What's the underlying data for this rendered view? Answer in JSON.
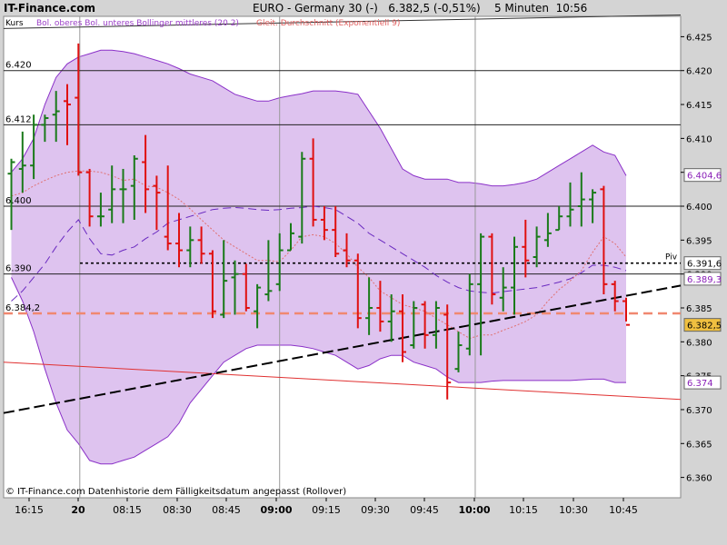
{
  "header": {
    "site": "IT-Finance.com",
    "title": "EURO - Germany 30 (-)   6.382,5 (-0,51%)    5 Minuten  10:56"
  },
  "legend": {
    "kurs": "Kurs",
    "bollinger": "Bol. oberes Bol. unteres Bollinger mittleres (20 2)",
    "ema": "Gleit. Durchschnitt (Exponentiell 9)"
  },
  "footer": "© IT-Finance.com  Datenhistorie dem Fälligkeitsdatum angepasst (Rollover)",
  "colors": {
    "up": "#1a7a1a",
    "down": "#e01010",
    "band_fill": "#d8b8ec",
    "band_line": "#8a30c8",
    "middle_line": "#6a2ac0",
    "ema_line": "#e07070",
    "level_line": "#f08870"
  },
  "chart_data": {
    "type": "ohlc",
    "ylim": [
      6.357,
      6.428
    ],
    "y_ticks": [
      "6.425",
      "6.420",
      "6.415",
      "6.410",
      "6.405",
      "6.400",
      "6.395",
      "6.390",
      "6.385",
      "6.380",
      "6.375",
      "6.370",
      "6.365",
      "6.360"
    ],
    "x_ticks": [
      {
        "label": "16:15",
        "bold": false
      },
      {
        "label": "20",
        "bold": true
      },
      {
        "label": "08:15",
        "bold": false
      },
      {
        "label": "08:30",
        "bold": false
      },
      {
        "label": "08:45",
        "bold": false
      },
      {
        "label": "09:00",
        "bold": true
      },
      {
        "label": "09:15",
        "bold": false
      },
      {
        "label": "09:30",
        "bold": false
      },
      {
        "label": "09:45",
        "bold": false
      },
      {
        "label": "10:00",
        "bold": true
      },
      {
        "label": "10:15",
        "bold": false
      },
      {
        "label": "10:30",
        "bold": false
      },
      {
        "label": "10:45",
        "bold": false
      }
    ],
    "levels": [
      {
        "label": "6.420",
        "value": 6.42
      },
      {
        "label": "6.412",
        "value": 6.412
      },
      {
        "label": "6.400",
        "value": 6.4
      },
      {
        "label": "6.390",
        "value": 6.39
      },
      {
        "label": "6.384,2",
        "value": 6.3842
      }
    ],
    "pivot": {
      "label": "Piv",
      "value": 6.3916
    },
    "tags": [
      {
        "label": "6.404,6",
        "value": 6.4046
      },
      {
        "label": "6.391,6",
        "value": 6.3916
      },
      {
        "label": "6.389,3",
        "value": 6.3893
      },
      {
        "label": "6.382,5",
        "value": 6.3825
      },
      {
        "label": "6.374",
        "value": 6.374
      }
    ],
    "trend_dashed": [
      [
        0,
        6.3695
      ],
      [
        62,
        6.3883
      ]
    ],
    "trend_red": [
      [
        0,
        6.377
      ],
      [
        62,
        6.3715
      ]
    ],
    "bars": [
      [
        6.4048,
        6.407,
        6.3965,
        6.4065
      ],
      [
        6.4055,
        6.411,
        6.402,
        6.406
      ],
      [
        6.406,
        6.4135,
        6.404,
        6.412
      ],
      [
        6.412,
        6.4135,
        6.4095,
        6.413
      ],
      [
        6.4135,
        6.417,
        6.4095,
        6.414
      ],
      [
        6.4155,
        6.418,
        6.409,
        6.415
      ],
      [
        6.416,
        6.424,
        6.4045,
        6.405
      ],
      [
        6.405,
        6.4055,
        6.397,
        6.3985
      ],
      [
        6.3985,
        6.402,
        6.397,
        6.3985
      ],
      [
        6.3995,
        6.406,
        6.3975,
        6.4025
      ],
      [
        6.4025,
        6.4055,
        6.3975,
        6.4025
      ],
      [
        6.403,
        6.4075,
        6.398,
        6.407
      ],
      [
        6.4065,
        6.4105,
        6.399,
        6.4025
      ],
      [
        6.403,
        6.4045,
        6.3965,
        6.402
      ],
      [
        6.3955,
        6.406,
        6.3935,
        6.3945
      ],
      [
        6.3945,
        6.399,
        6.391,
        6.3935
      ],
      [
        6.3935,
        6.397,
        6.391,
        6.395
      ],
      [
        6.395,
        6.397,
        6.3915,
        6.393
      ],
      [
        6.393,
        6.3935,
        6.3835,
        6.3845
      ],
      [
        6.384,
        6.395,
        6.3835,
        6.389
      ],
      [
        6.3895,
        6.392,
        6.384,
        6.39
      ],
      [
        6.39,
        6.3915,
        6.3845,
        6.385
      ],
      [
        6.3845,
        6.3885,
        6.382,
        6.388
      ],
      [
        6.387,
        6.395,
        6.386,
        6.3875
      ],
      [
        6.3885,
        6.396,
        6.3875,
        6.3935
      ],
      [
        6.3935,
        6.3975,
        6.3935,
        6.396
      ],
      [
        6.3955,
        6.408,
        6.3945,
        6.407
      ],
      [
        6.407,
        6.41,
        6.397,
        6.398
      ],
      [
        6.398,
        6.4,
        6.395,
        6.3965
      ],
      [
        6.3965,
        6.4,
        6.3925,
        6.393
      ],
      [
        6.3935,
        6.396,
        6.391,
        6.392
      ],
      [
        6.392,
        6.393,
        6.382,
        6.3835
      ],
      [
        6.3835,
        6.3895,
        6.381,
        6.385
      ],
      [
        6.385,
        6.389,
        6.3815,
        6.383
      ],
      [
        6.383,
        6.387,
        6.38,
        6.3845
      ],
      [
        6.3845,
        6.387,
        6.377,
        6.3785
      ],
      [
        6.3795,
        6.386,
        6.379,
        6.385
      ],
      [
        6.3855,
        6.386,
        6.379,
        6.381
      ],
      [
        6.381,
        6.386,
        6.379,
        6.385
      ],
      [
        6.384,
        6.3855,
        6.3715,
        6.374
      ],
      [
        6.376,
        6.3815,
        6.3755,
        6.3795
      ],
      [
        6.379,
        6.39,
        6.378,
        6.3885
      ],
      [
        6.3885,
        6.396,
        6.378,
        6.3955
      ],
      [
        6.3955,
        6.396,
        6.3855,
        6.387
      ],
      [
        6.3865,
        6.391,
        6.3845,
        6.388
      ],
      [
        6.388,
        6.3955,
        6.384,
        6.394
      ],
      [
        6.394,
        6.398,
        6.3895,
        6.392
      ],
      [
        6.3925,
        6.397,
        6.391,
        6.3955
      ],
      [
        6.395,
        6.399,
        6.394,
        6.396
      ],
      [
        6.3965,
        6.4,
        6.3965,
        6.3985
      ],
      [
        6.3985,
        6.4035,
        6.397,
        6.3995
      ],
      [
        6.4,
        6.405,
        6.397,
        6.401
      ],
      [
        6.401,
        6.4025,
        6.3975,
        6.402
      ],
      [
        6.4025,
        6.403,
        6.387,
        6.3885
      ],
      [
        6.3885,
        6.389,
        6.3845,
        6.386
      ],
      [
        6.386,
        6.3865,
        6.383,
        6.3825
      ]
    ],
    "bands_upper": [
      6.405,
      6.407,
      6.41,
      6.415,
      6.419,
      6.421,
      6.422,
      6.4225,
      6.423,
      6.423,
      6.4228,
      6.4225,
      6.422,
      6.4215,
      6.421,
      6.4203,
      6.4195,
      6.419,
      6.4185,
      6.4175,
      6.4165,
      6.416,
      6.4155,
      6.4155,
      6.416,
      6.4163,
      6.4166,
      6.417,
      6.417,
      6.417,
      6.4168,
      6.4165,
      6.414,
      6.4115,
      6.4085,
      6.4055,
      6.4045,
      6.404,
      6.404,
      6.404,
      6.4035,
      6.4035,
      6.4033,
      6.403,
      6.403,
      6.4032,
      6.4035,
      6.404,
      6.405,
      6.406,
      6.407,
      6.408,
      6.409,
      6.408,
      6.4075,
      6.4045
    ],
    "bands_lower": [
      6.3895,
      6.386,
      6.3815,
      6.376,
      6.371,
      6.367,
      6.365,
      6.3625,
      6.362,
      6.362,
      6.3625,
      6.363,
      6.364,
      6.365,
      6.366,
      6.368,
      6.371,
      6.373,
      6.375,
      6.377,
      6.378,
      6.379,
      6.3795,
      6.3795,
      6.3795,
      6.3795,
      6.3793,
      6.379,
      6.3785,
      6.378,
      6.377,
      6.376,
      6.3765,
      6.3775,
      6.378,
      6.378,
      6.377,
      6.3765,
      6.376,
      6.3748,
      6.374,
      6.374,
      6.374,
      6.3742,
      6.3743,
      6.3743,
      6.3743,
      6.3743,
      6.3743,
      6.3743,
      6.3743,
      6.3744,
      6.3745,
      6.3745,
      6.374,
      6.374
    ],
    "bands_middle": [
      6.386,
      6.3875,
      6.3895,
      6.3915,
      6.394,
      6.3962,
      6.398,
      6.3952,
      6.393,
      6.3928,
      6.3935,
      6.394,
      6.3952,
      6.3962,
      6.3975,
      6.398,
      6.3985,
      6.399,
      6.3995,
      6.3997,
      6.3998,
      6.3997,
      6.3995,
      6.3994,
      6.3995,
      6.3997,
      6.3998,
      6.4,
      6.3998,
      6.3995,
      6.3985,
      6.3975,
      6.396,
      6.395,
      6.394,
      6.393,
      6.392,
      6.391,
      6.3898,
      6.3888,
      6.388,
      6.3875,
      6.3873,
      6.3872,
      6.3874,
      6.3876,
      6.3878,
      6.388,
      6.3884,
      6.3888,
      6.3893,
      6.3902,
      6.3913,
      6.3913,
      6.391,
      6.3905
    ],
    "ema": [
      6.4015,
      6.402,
      6.403,
      6.4038,
      6.4045,
      6.405,
      6.4052,
      6.4052,
      6.405,
      6.4045,
      6.4038,
      6.404,
      6.403,
      6.4028,
      6.402,
      6.401,
      6.3996,
      6.398,
      6.3965,
      6.395,
      6.394,
      6.393,
      6.392,
      6.392,
      6.3918,
      6.3935,
      6.3955,
      6.3958,
      6.3955,
      6.3945,
      6.393,
      6.391,
      6.3895,
      6.3875,
      6.3865,
      6.3855,
      6.385,
      6.3845,
      6.3835,
      6.3825,
      6.3815,
      6.3805,
      6.381,
      6.381,
      6.3817,
      6.3823,
      6.383,
      6.384,
      6.386,
      6.3877,
      6.389,
      6.3905,
      6.3932,
      6.3955,
      6.3945,
      6.3925
    ]
  }
}
